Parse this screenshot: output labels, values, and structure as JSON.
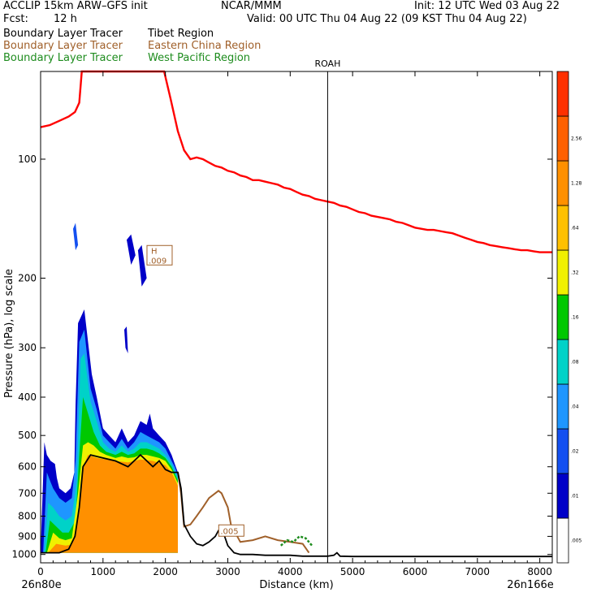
{
  "header": {
    "model": "ACCLIP 15km ARW–GFS init",
    "center": "NCAR/MMM",
    "init": "Init: 12 UTC Wed 03 Aug 22",
    "fcst_label": "Fcst:",
    "fcst_value": "12 h",
    "valid": "Valid: 00 UTC Thu 04 Aug 22 (09 KST Thu 04 Aug 22)"
  },
  "legend": [
    {
      "label": "Boundary Layer Tracer",
      "region": "Tibet Region",
      "color": "#000000"
    },
    {
      "label": "Boundary Layer Tracer",
      "region": "Eastern China Region",
      "color": "#a0602a"
    },
    {
      "label": "Boundary Layer Tracer",
      "region": "West Pacific Region",
      "color": "#1e8c1e"
    }
  ],
  "chart_data": {
    "type": "area",
    "title": "",
    "xlabel": "Distance (km)",
    "ylabel": "Pressure (hPa), log scale",
    "xlim": [
      0,
      8200
    ],
    "ylim": [
      1050,
      60
    ],
    "y_scale": "log",
    "x_ticks": [
      "0",
      "1000",
      "2000",
      "3000",
      "4000",
      "5000",
      "6000",
      "7000",
      "8000"
    ],
    "y_ticks": [
      "100",
      "200",
      "300",
      "400",
      "500",
      "600",
      "700",
      "800",
      "900",
      "1000"
    ],
    "start_label": "26n80e",
    "end_label": "26n166e",
    "marker": {
      "label": "ROAH",
      "x": 4600
    },
    "annotations": [
      {
        "text": "H",
        "value": ".009",
        "x": 1900,
        "p": 175
      },
      {
        "text": "",
        "value": ".005",
        "x": 3050,
        "p": 870
      }
    ],
    "colorbar": {
      "ticks": [
        ".005",
        ".01",
        ".02",
        ".04",
        ".08",
        ".16",
        ".32",
        ".64",
        "1.28",
        "2.56"
      ],
      "colors": [
        "#0000c8",
        "#1450f0",
        "#1e96ff",
        "#00d2c8",
        "#00c800",
        "#f0f000",
        "#ffc000",
        "#ff9000",
        "#ff6000",
        "#ff3000"
      ]
    },
    "tropopause_color": "#ff0000",
    "tropopause": [
      [
        0,
        83
      ],
      [
        150,
        82
      ],
      [
        300,
        80
      ],
      [
        450,
        78
      ],
      [
        550,
        76
      ],
      [
        620,
        72
      ],
      [
        660,
        60
      ],
      [
        700,
        55
      ],
      [
        1900,
        55
      ],
      [
        1980,
        60
      ],
      [
        2080,
        70
      ],
      [
        2200,
        85
      ],
      [
        2300,
        95
      ],
      [
        2400,
        100
      ],
      [
        2500,
        99
      ],
      [
        2600,
        100
      ],
      [
        2700,
        102
      ],
      [
        2800,
        104
      ],
      [
        2900,
        105
      ],
      [
        3000,
        107
      ],
      [
        3100,
        108
      ],
      [
        3200,
        110
      ],
      [
        3300,
        111
      ],
      [
        3400,
        113
      ],
      [
        3500,
        113
      ],
      [
        3600,
        114
      ],
      [
        3700,
        115
      ],
      [
        3800,
        116
      ],
      [
        3900,
        118
      ],
      [
        4000,
        119
      ],
      [
        4100,
        121
      ],
      [
        4200,
        123
      ],
      [
        4300,
        124
      ],
      [
        4400,
        126
      ],
      [
        4500,
        127
      ],
      [
        4600,
        128
      ],
      [
        4700,
        129
      ],
      [
        4800,
        131
      ],
      [
        4900,
        132
      ],
      [
        5000,
        134
      ],
      [
        5100,
        136
      ],
      [
        5200,
        137
      ],
      [
        5300,
        139
      ],
      [
        5400,
        140
      ],
      [
        5500,
        141
      ],
      [
        5600,
        142
      ],
      [
        5700,
        144
      ],
      [
        5800,
        145
      ],
      [
        5900,
        147
      ],
      [
        6000,
        149
      ],
      [
        6100,
        150
      ],
      [
        6200,
        151
      ],
      [
        6300,
        151
      ],
      [
        6400,
        152
      ],
      [
        6500,
        153
      ],
      [
        6600,
        154
      ],
      [
        6700,
        156
      ],
      [
        6800,
        158
      ],
      [
        6900,
        160
      ],
      [
        7000,
        162
      ],
      [
        7100,
        163
      ],
      [
        7200,
        165
      ],
      [
        7300,
        166
      ],
      [
        7400,
        167
      ],
      [
        7500,
        168
      ],
      [
        7600,
        169
      ],
      [
        7700,
        170
      ],
      [
        7800,
        170
      ],
      [
        7900,
        171
      ],
      [
        8000,
        172
      ],
      [
        8100,
        172
      ],
      [
        8200,
        172
      ]
    ],
    "boundary_layer_top": [
      [
        0,
        990
      ],
      [
        150,
        990
      ],
      [
        300,
        990
      ],
      [
        450,
        970
      ],
      [
        550,
        900
      ],
      [
        620,
        760
      ],
      [
        680,
        600
      ],
      [
        800,
        560
      ],
      [
        1000,
        570
      ],
      [
        1200,
        580
      ],
      [
        1400,
        600
      ],
      [
        1600,
        560
      ],
      [
        1800,
        600
      ],
      [
        1900,
        580
      ],
      [
        2000,
        610
      ],
      [
        2100,
        620
      ],
      [
        2200,
        620
      ],
      [
        2250,
        680
      ],
      [
        2300,
        840
      ],
      [
        2400,
        900
      ],
      [
        2500,
        940
      ],
      [
        2600,
        950
      ],
      [
        2700,
        930
      ],
      [
        2800,
        900
      ],
      [
        2850,
        870
      ],
      [
        2900,
        860
      ],
      [
        2950,
        900
      ],
      [
        3000,
        950
      ],
      [
        3100,
        990
      ],
      [
        3200,
        1000
      ],
      [
        3400,
        1000
      ],
      [
        3600,
        1005
      ],
      [
        3800,
        1005
      ],
      [
        4000,
        1005
      ],
      [
        4200,
        1010
      ],
      [
        4400,
        1010
      ],
      [
        4600,
        1010
      ],
      [
        4700,
        1005
      ],
      [
        4750,
        990
      ],
      [
        4800,
        1010
      ],
      [
        5000,
        1012
      ],
      [
        6000,
        1012
      ],
      [
        7000,
        1012
      ],
      [
        8000,
        1012
      ],
      [
        8200,
        1012
      ]
    ],
    "eastern_china_tracer": [
      [
        2200,
        620
      ],
      [
        2250,
        700
      ],
      [
        2300,
        850
      ],
      [
        2400,
        840
      ],
      [
        2500,
        800
      ],
      [
        2600,
        760
      ],
      [
        2700,
        720
      ],
      [
        2800,
        700
      ],
      [
        2850,
        690
      ],
      [
        2900,
        700
      ],
      [
        3000,
        760
      ],
      [
        3050,
        840
      ],
      [
        3200,
        930
      ],
      [
        3400,
        920
      ],
      [
        3600,
        900
      ],
      [
        3800,
        920
      ],
      [
        4000,
        930
      ],
      [
        4200,
        940
      ],
      [
        4300,
        990
      ]
    ],
    "west_pacific_tracer": [
      [
        3850,
        950
      ],
      [
        3950,
        920
      ],
      [
        4050,
        930
      ],
      [
        4150,
        900
      ],
      [
        4250,
        910
      ],
      [
        4350,
        950
      ]
    ],
    "tibet_plume_levels": [
      {
        "level": ".005",
        "color": "#0000c8",
        "outline": [
          [
            0,
            990
          ],
          [
            60,
            520
          ],
          [
            100,
            560
          ],
          [
            160,
            580
          ],
          [
            230,
            590
          ],
          [
            260,
            640
          ],
          [
            300,
            680
          ],
          [
            400,
            700
          ],
          [
            480,
            680
          ],
          [
            540,
            620
          ],
          [
            560,
            420
          ],
          [
            600,
            260
          ],
          [
            700,
            240
          ],
          [
            820,
            350
          ],
          [
            900,
            400
          ],
          [
            1000,
            480
          ],
          [
            1100,
            500
          ],
          [
            1200,
            520
          ],
          [
            1300,
            480
          ],
          [
            1400,
            520
          ],
          [
            1500,
            500
          ],
          [
            1600,
            460
          ],
          [
            1700,
            470
          ],
          [
            1750,
            440
          ],
          [
            1800,
            480
          ],
          [
            1900,
            500
          ],
          [
            2000,
            520
          ],
          [
            2100,
            560
          ],
          [
            2150,
            590
          ],
          [
            2200,
            620
          ],
          [
            2200,
            990
          ]
        ]
      },
      {
        "level": ".01",
        "color": "#1e96ff",
        "outline": [
          [
            40,
            990
          ],
          [
            100,
            620
          ],
          [
            150,
            650
          ],
          [
            200,
            680
          ],
          [
            300,
            720
          ],
          [
            400,
            740
          ],
          [
            500,
            720
          ],
          [
            560,
            580
          ],
          [
            620,
            290
          ],
          [
            700,
            270
          ],
          [
            800,
            380
          ],
          [
            900,
            430
          ],
          [
            1000,
            500
          ],
          [
            1100,
            520
          ],
          [
            1200,
            540
          ],
          [
            1300,
            510
          ],
          [
            1400,
            540
          ],
          [
            1500,
            520
          ],
          [
            1600,
            490
          ],
          [
            1700,
            500
          ],
          [
            1800,
            510
          ],
          [
            1900,
            520
          ],
          [
            2000,
            540
          ],
          [
            2100,
            580
          ],
          [
            2150,
            600
          ],
          [
            2200,
            630
          ],
          [
            2200,
            990
          ]
        ]
      },
      {
        "level": ".04",
        "color": "#00d2c8",
        "outline": [
          [
            60,
            990
          ],
          [
            120,
            740
          ],
          [
            200,
            760
          ],
          [
            300,
            800
          ],
          [
            400,
            820
          ],
          [
            500,
            800
          ],
          [
            580,
            650
          ],
          [
            640,
            320
          ],
          [
            700,
            310
          ],
          [
            800,
            410
          ],
          [
            900,
            460
          ],
          [
            1000,
            520
          ],
          [
            1100,
            540
          ],
          [
            1200,
            550
          ],
          [
            1300,
            530
          ],
          [
            1400,
            550
          ],
          [
            1500,
            540
          ],
          [
            1600,
            520
          ],
          [
            1700,
            520
          ],
          [
            1800,
            530
          ],
          [
            1900,
            540
          ],
          [
            2000,
            560
          ],
          [
            2100,
            590
          ],
          [
            2200,
            640
          ],
          [
            2200,
            990
          ]
        ]
      },
      {
        "level": ".16",
        "color": "#00c800",
        "outline": [
          [
            80,
            990
          ],
          [
            150,
            820
          ],
          [
            250,
            850
          ],
          [
            350,
            880
          ],
          [
            450,
            880
          ],
          [
            560,
            820
          ],
          [
            620,
            560
          ],
          [
            680,
            400
          ],
          [
            760,
            440
          ],
          [
            850,
            490
          ],
          [
            950,
            530
          ],
          [
            1050,
            550
          ],
          [
            1200,
            560
          ],
          [
            1300,
            550
          ],
          [
            1400,
            560
          ],
          [
            1500,
            555
          ],
          [
            1600,
            540
          ],
          [
            1700,
            540
          ],
          [
            1800,
            545
          ],
          [
            1900,
            555
          ],
          [
            2000,
            570
          ],
          [
            2100,
            600
          ],
          [
            2200,
            650
          ],
          [
            2200,
            990
          ]
        ]
      },
      {
        "level": ".32",
        "color": "#f0f000",
        "outline": [
          [
            100,
            990
          ],
          [
            200,
            880
          ],
          [
            300,
            910
          ],
          [
            400,
            920
          ],
          [
            500,
            910
          ],
          [
            600,
            700
          ],
          [
            680,
            530
          ],
          [
            760,
            520
          ],
          [
            850,
            530
          ],
          [
            950,
            550
          ],
          [
            1050,
            560
          ],
          [
            1200,
            570
          ],
          [
            1300,
            565
          ],
          [
            1400,
            570
          ],
          [
            1500,
            568
          ],
          [
            1600,
            560
          ],
          [
            1700,
            560
          ],
          [
            1800,
            565
          ],
          [
            1900,
            570
          ],
          [
            2000,
            580
          ],
          [
            2100,
            610
          ],
          [
            2200,
            660
          ],
          [
            2200,
            990
          ]
        ]
      },
      {
        "level": ".64",
        "color": "#ff9000",
        "outline": [
          [
            120,
            990
          ],
          [
            250,
            940
          ],
          [
            400,
            950
          ],
          [
            500,
            945
          ],
          [
            600,
            820
          ],
          [
            680,
            600
          ],
          [
            760,
            560
          ],
          [
            900,
            570
          ],
          [
            1050,
            575
          ],
          [
            1200,
            580
          ],
          [
            1400,
            585
          ],
          [
            1600,
            575
          ],
          [
            1800,
            580
          ],
          [
            2000,
            595
          ],
          [
            2100,
            620
          ],
          [
            2200,
            670
          ],
          [
            2200,
            990
          ]
        ]
      }
    ],
    "upper_fragments": [
      {
        "color": "#1450f0",
        "points": [
          [
            520,
            150
          ],
          [
            560,
            145
          ],
          [
            600,
            165
          ],
          [
            560,
            170
          ]
        ]
      },
      {
        "color": "#0000c8",
        "points": [
          [
            1380,
            160
          ],
          [
            1450,
            155
          ],
          [
            1520,
            175
          ],
          [
            1450,
            185
          ]
        ]
      },
      {
        "color": "#0000c8",
        "points": [
          [
            1560,
            170
          ],
          [
            1620,
            165
          ],
          [
            1700,
            200
          ],
          [
            1620,
            210
          ]
        ]
      },
      {
        "color": "#0000c8",
        "points": [
          [
            1340,
            270
          ],
          [
            1380,
            265
          ],
          [
            1400,
            310
          ],
          [
            1360,
            300
          ]
        ]
      }
    ]
  }
}
